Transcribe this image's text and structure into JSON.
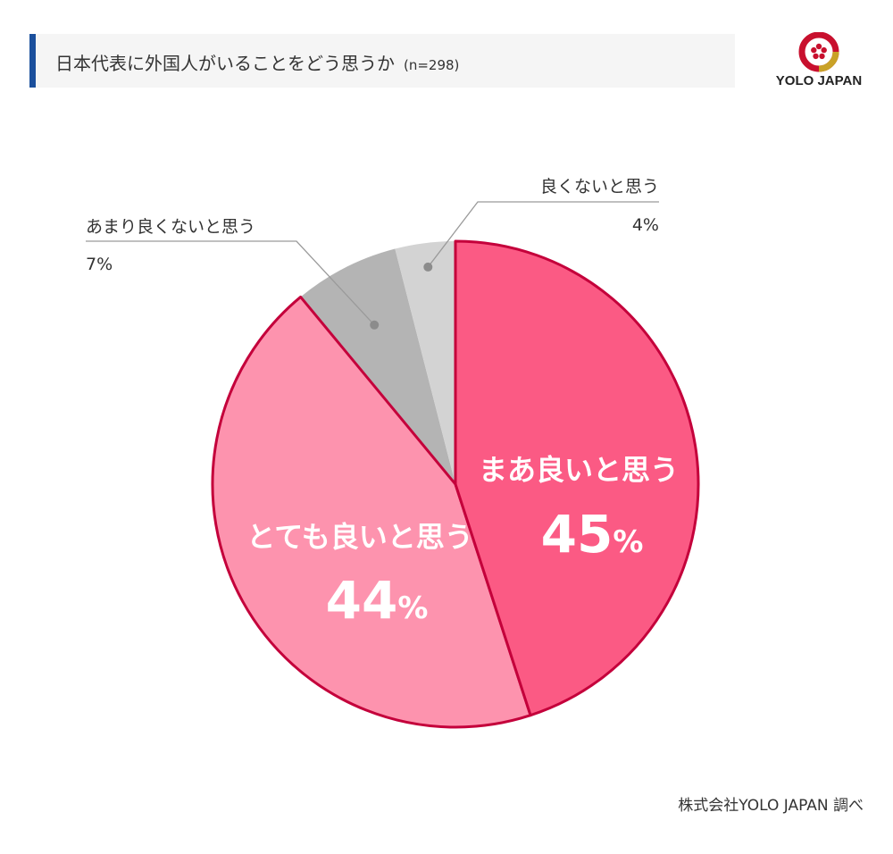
{
  "header": {
    "title": "日本代表に外国人がいることをどう思うか",
    "sample": "(n=298)"
  },
  "logo": {
    "text": "YOLO JAPAN",
    "colors": {
      "red": "#c8102e",
      "gold": "#c9a227"
    }
  },
  "chart_data": {
    "type": "pie",
    "title": "日本代表に外国人がいることをどう思うか",
    "sample_note": "(n=298)",
    "unit": "%",
    "slices": [
      {
        "label": "まあ良いと思う",
        "value": 45,
        "value_label": "45",
        "color": "#fb5a84"
      },
      {
        "label": "とても良いと思う",
        "value": 44,
        "value_label": "44",
        "color": "#fd93ae"
      },
      {
        "label": "あまり良くないと思う",
        "value": 7,
        "value_label": "7%",
        "color": "#b4b4b4"
      },
      {
        "label": "良くないと思う",
        "value": 4,
        "value_label": "4%",
        "color": "#d3d3d3"
      }
    ],
    "highlight_outline_color": "#c4003b"
  },
  "footer": {
    "credit": "株式会社YOLO JAPAN 調べ"
  }
}
